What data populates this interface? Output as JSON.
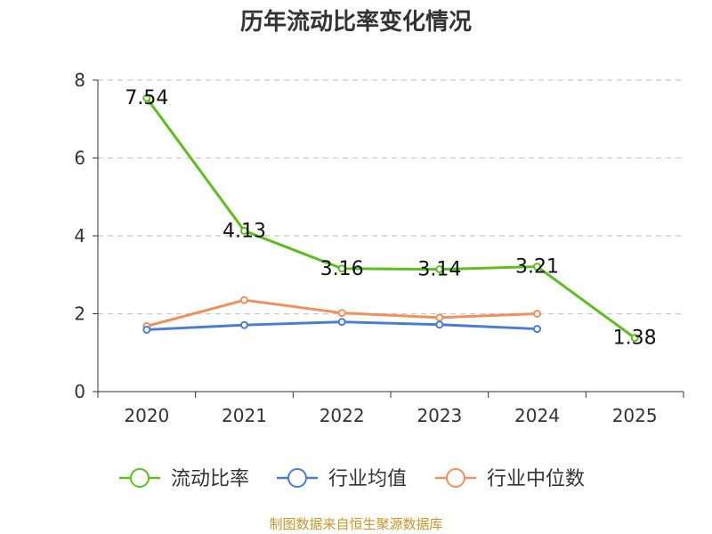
{
  "chart_data": {
    "type": "line",
    "title": "历年流动比率变化情况",
    "categories": [
      "2020",
      "2021",
      "2022",
      "2023",
      "2024",
      "2025"
    ],
    "ylim": [
      0,
      8
    ],
    "yticks": [
      0,
      2,
      4,
      6,
      8
    ],
    "grid": true,
    "legend_position": "bottom",
    "series": [
      {
        "name": "流动比率",
        "color": "#5dbf1d",
        "values": [
          7.54,
          4.13,
          3.16,
          3.14,
          3.21,
          1.38
        ],
        "show_labels": true
      },
      {
        "name": "行业均值",
        "color": "#4b7bd9",
        "values": [
          1.59,
          1.71,
          1.79,
          1.72,
          1.61,
          null
        ],
        "show_labels": false
      },
      {
        "name": "行业中位数",
        "color": "#f0905c",
        "values": [
          1.68,
          2.35,
          2.02,
          1.9,
          2.0,
          null
        ],
        "show_labels": false
      }
    ],
    "data_labels": [
      "7.54",
      "4.13",
      "3.16",
      "3.14",
      "3.21",
      "1.38"
    ]
  },
  "footer": {
    "source": "制图数据来自恒生聚源数据库"
  }
}
